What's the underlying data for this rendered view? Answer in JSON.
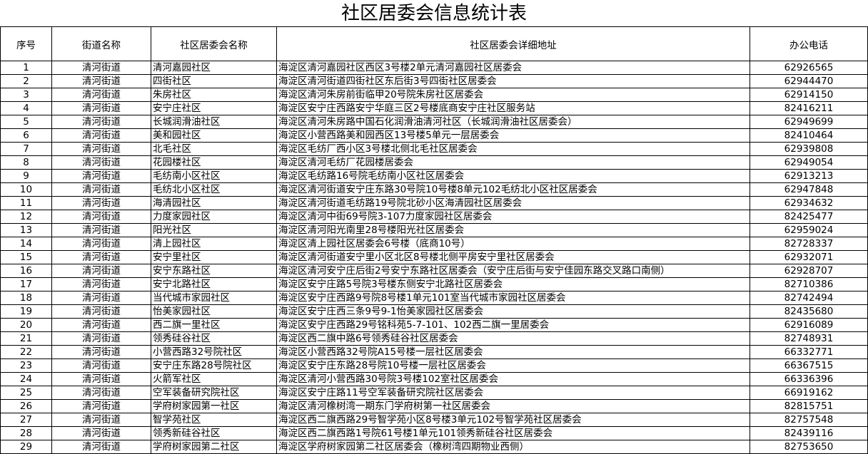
{
  "title": "社区居委会信息统计表",
  "headers": [
    "序号",
    "街道名称",
    "社区居委会名称",
    "社区居委会详细地址",
    "办公电话"
  ],
  "rows": [
    [
      "1",
      "清河街道",
      "清河嘉园社区",
      "海淀区清河嘉园社区西区3号楼2单元清河嘉园社区居委会",
      "62926565"
    ],
    [
      "2",
      "清河街道",
      "四街社区",
      "海淀区清河街道四街社区东后街3号四街社区居委会",
      "62944470"
    ],
    [
      "3",
      "清河街道",
      "朱房社区",
      "海淀区清河朱房前街临甲20号院朱房社区居委会",
      "62914150"
    ],
    [
      "4",
      "清河街道",
      "安宁庄社区",
      "海淀区安宁庄西路安宁华庭三区2号楼底商安宁庄社区服务站",
      "82416211"
    ],
    [
      "5",
      "清河街道",
      "长城润滑油社区",
      "海淀区清河朱房路中国石化润滑油清河社区（长城润滑油社区居委会）",
      "62949699"
    ],
    [
      "6",
      "清河街道",
      "美和园社区",
      "海淀区小营西路美和园西区13号楼5单元一层居委会",
      "82410464"
    ],
    [
      "7",
      "清河街道",
      "北毛社区",
      "海淀区毛纺厂西小区3号楼北侧北毛社区居委会",
      "62939808"
    ],
    [
      "8",
      "清河街道",
      "花园楼社区",
      "海淀区清河毛纺厂花园楼居委会",
      "62949054"
    ],
    [
      "9",
      "清河街道",
      "毛纺南小区社区",
      "海淀区毛纺路16号院毛纺南小区社区居委会",
      "62913213"
    ],
    [
      "10",
      "清河街道",
      "毛纺北小区社区",
      "海淀区清河街道安宁庄东路30号院10号楼8单元102毛纺北小区社区居委会",
      "62947848"
    ],
    [
      "11",
      "清河街道",
      "海清园社区",
      "海淀区清河街道毛纺路19号院北砂小区海清园社区居委会",
      "62934632"
    ],
    [
      "12",
      "清河街道",
      "力度家园社区",
      "海淀区清河中街69号院3-107力度家园社区居委会",
      "82425477"
    ],
    [
      "13",
      "清河街道",
      "阳光社区",
      "海淀区清河阳光南里28号楼阳光社区居委会",
      "62959024"
    ],
    [
      "14",
      "清河街道",
      "清上园社区",
      "海淀区清上园社区居委会6号楼（底商10号）",
      "82728337"
    ],
    [
      "15",
      "清河街道",
      "安宁里社区",
      "海淀区清河街道安宁里小区北区8号楼北侧平房安宁里社区居委会",
      "62932071"
    ],
    [
      "16",
      "清河街道",
      "安宁东路社区",
      "海淀区清河安宁庄后街2号安宁东路社区居委会（安宁庄后街与安宁佳园东路交叉路口南侧）",
      "62928707"
    ],
    [
      "17",
      "清河街道",
      "安宁北路社区",
      "海淀区安宁庄路5号院3号楼东侧安宁北路社区居委会",
      "82710386"
    ],
    [
      "18",
      "清河街道",
      "当代城市家园社区",
      "海淀区安宁庄西路9号院8号楼1单元101室当代城市家园社区居委会",
      "82742494"
    ],
    [
      "19",
      "清河街道",
      "怡美家园社区",
      "海淀区安宁庄西三条9号9-1怡美家园社区居委会",
      "82435680"
    ],
    [
      "20",
      "清河街道",
      "西二旗一里社区",
      "海淀区安宁庄西路29号铭科苑5-7-101、102西二旗一里居委会",
      "62916089"
    ],
    [
      "21",
      "清河街道",
      "领秀硅谷社区",
      "海淀区西二旗中路6号领秀硅谷社区居委会",
      "82748931"
    ],
    [
      "22",
      "清河街道",
      "小营西路32号院社区",
      "海淀区小营西路32号院A15号楼一层社区居委会",
      "66332771"
    ],
    [
      "23",
      "清河街道",
      "安宁庄东路28号院社区",
      "海淀区安宁庄东路28号院10号楼一层社区居委会",
      "66367515"
    ],
    [
      "24",
      "清河街道",
      "火箭军社区",
      "海淀区清河小营西路30号院3号楼102室社区居委会",
      "66336396"
    ],
    [
      "25",
      "清河街道",
      "空军装备研究院社区",
      "海淀区安宁庄路11号空军装备研究院社区居委会",
      "66919162"
    ],
    [
      "26",
      "清河街道",
      "学府树家园第一社区",
      "海淀区清河橡树湾一期东门学府树第一社区居委会",
      "82815751"
    ],
    [
      "27",
      "清河街道",
      "智学苑社区",
      "海淀区西二旗西路29号智学苑小区8号楼3单元102号智学苑社区居委会",
      "82757548"
    ],
    [
      "28",
      "清河街道",
      "领秀新硅谷社区",
      "海淀区西二旗西路1号院61号楼1单元101领秀新硅谷社区居委会",
      "82439116"
    ],
    [
      "29",
      "清河街道",
      "学府树家园第二社区",
      "海淀区学府树家园第二社区居委会（橡树湾四期物业西侧）",
      "82753650"
    ]
  ]
}
